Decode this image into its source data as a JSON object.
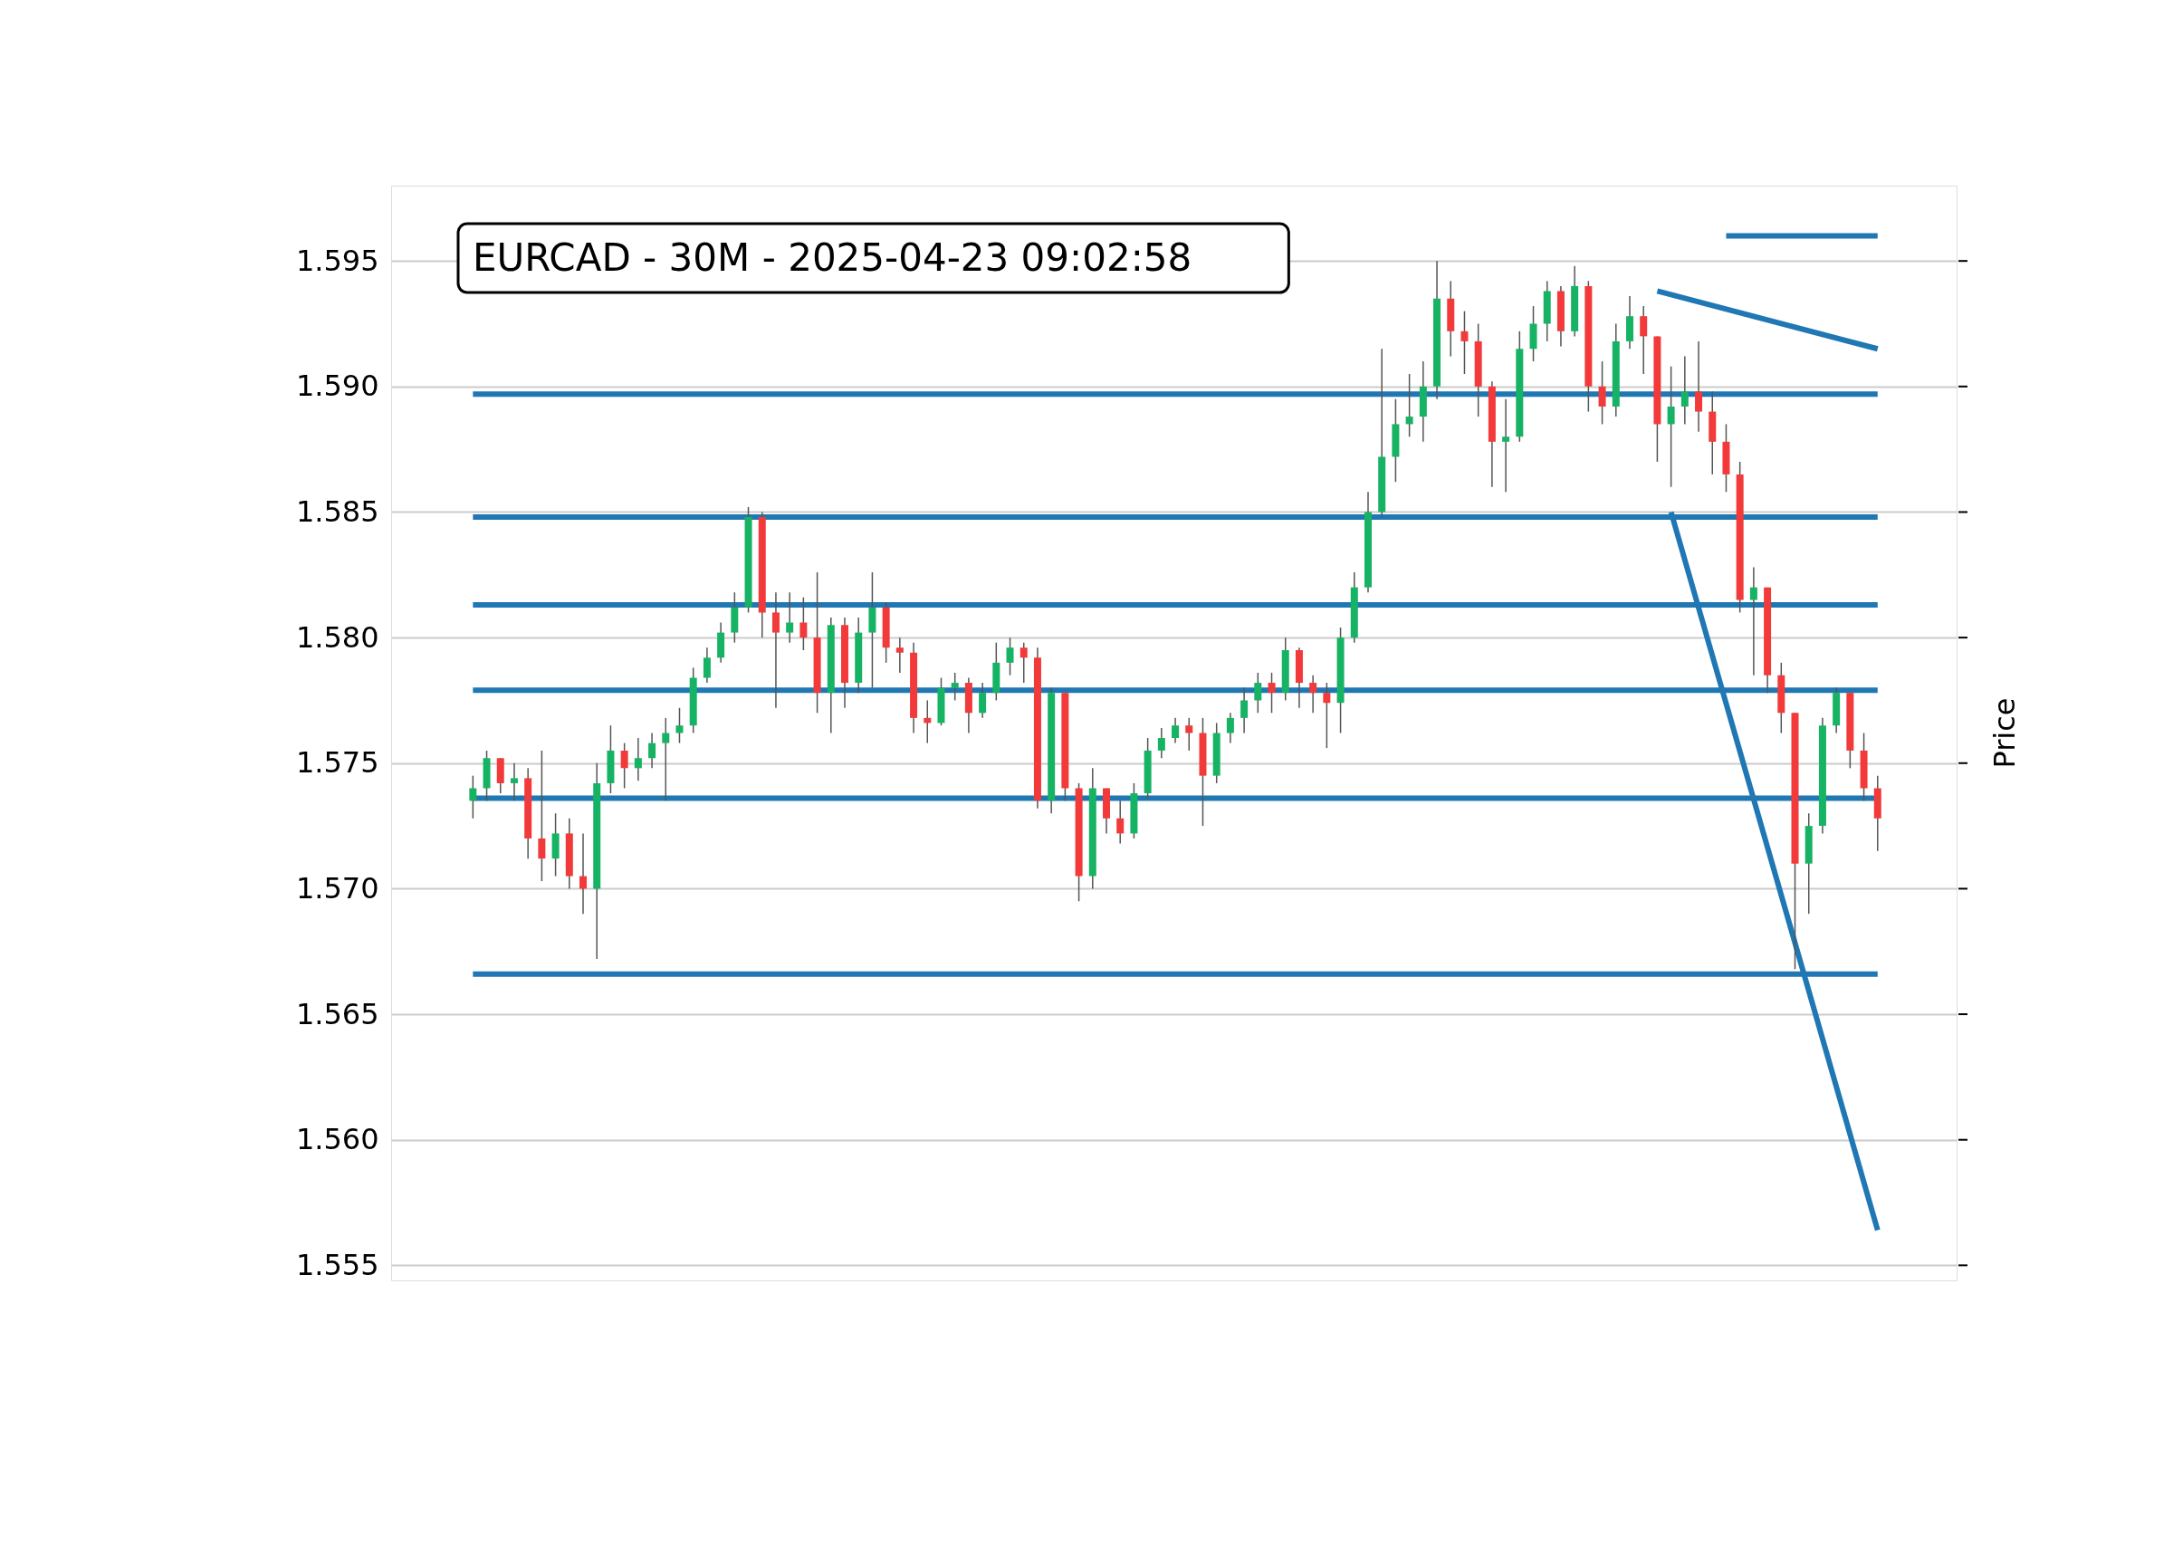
{
  "chart_data": {
    "type": "candlestick",
    "title": "EURCAD - 30M - 2025-04-23 09:02:58",
    "ylabel": "Price",
    "categories": [
      null,
      null,
      null,
      null,
      null,
      null,
      null,
      null,
      null,
      null,
      null,
      null,
      null,
      null,
      null,
      null,
      null,
      null,
      null,
      null,
      null,
      null,
      null,
      null,
      null,
      null,
      null,
      null,
      null,
      null,
      null,
      null,
      null,
      null,
      null,
      null,
      null,
      null,
      null,
      null,
      null,
      null,
      null,
      null,
      null,
      null,
      null,
      null,
      null,
      null,
      null,
      null,
      null,
      null,
      null,
      null,
      null,
      null,
      null,
      null,
      null,
      null,
      null,
      null,
      null,
      null,
      null,
      null,
      null,
      null,
      null,
      null,
      null,
      null,
      null,
      null,
      null,
      null,
      null,
      null,
      null,
      null,
      null,
      null,
      null,
      null,
      null,
      null,
      null,
      null,
      null,
      null,
      null,
      null,
      null,
      null,
      null,
      null,
      null,
      null,
      null,
      null,
      null
    ],
    "ohlc": [
      [
        1.5735,
        1.5745,
        1.5728,
        1.574
      ],
      [
        1.574,
        1.5755,
        1.5735,
        1.5752
      ],
      [
        1.5752,
        1.5752,
        1.5738,
        1.5742
      ],
      [
        1.5742,
        1.575,
        1.5735,
        1.5744
      ],
      [
        1.5744,
        1.5748,
        1.5712,
        1.572
      ],
      [
        1.572,
        1.5755,
        1.5703,
        1.5712
      ],
      [
        1.5712,
        1.573,
        1.5705,
        1.5722
      ],
      [
        1.5722,
        1.5728,
        1.57,
        1.5705
      ],
      [
        1.5705,
        1.5722,
        1.569,
        1.57
      ],
      [
        1.57,
        1.575,
        1.5672,
        1.5742
      ],
      [
        1.5742,
        1.5765,
        1.5738,
        1.5755
      ],
      [
        1.5755,
        1.5758,
        1.574,
        1.5748
      ],
      [
        1.5748,
        1.576,
        1.5743,
        1.5752
      ],
      [
        1.5752,
        1.5762,
        1.5748,
        1.5758
      ],
      [
        1.5758,
        1.5768,
        1.5735,
        1.5762
      ],
      [
        1.5762,
        1.5772,
        1.5758,
        1.5765
      ],
      [
        1.5765,
        1.5788,
        1.5762,
        1.5784
      ],
      [
        1.5784,
        1.5796,
        1.5782,
        1.5792
      ],
      [
        1.5792,
        1.5806,
        1.579,
        1.5802
      ],
      [
        1.5802,
        1.5818,
        1.5798,
        1.5812
      ],
      [
        1.5812,
        1.5852,
        1.581,
        1.5848
      ],
      [
        1.5848,
        1.585,
        1.58,
        1.581
      ],
      [
        1.581,
        1.5818,
        1.5772,
        1.5802
      ],
      [
        1.5802,
        1.5818,
        1.5798,
        1.5806
      ],
      [
        1.5806,
        1.5816,
        1.5795,
        1.58
      ],
      [
        1.58,
        1.5826,
        1.577,
        1.5778
      ],
      [
        1.5778,
        1.5808,
        1.5762,
        1.5805
      ],
      [
        1.5805,
        1.5808,
        1.5772,
        1.5782
      ],
      [
        1.5782,
        1.5808,
        1.5778,
        1.5802
      ],
      [
        1.5802,
        1.5826,
        1.578,
        1.5812
      ],
      [
        1.5812,
        1.5814,
        1.579,
        1.5796
      ],
      [
        1.5796,
        1.58,
        1.5786,
        1.5794
      ],
      [
        1.5794,
        1.5798,
        1.5762,
        1.5768
      ],
      [
        1.5768,
        1.5775,
        1.5758,
        1.5766
      ],
      [
        1.5766,
        1.5784,
        1.5765,
        1.578
      ],
      [
        1.578,
        1.5786,
        1.5775,
        1.5782
      ],
      [
        1.5782,
        1.5784,
        1.5762,
        1.577
      ],
      [
        1.577,
        1.5782,
        1.5768,
        1.5778
      ],
      [
        1.5778,
        1.5798,
        1.5775,
        1.579
      ],
      [
        1.579,
        1.58,
        1.5785,
        1.5796
      ],
      [
        1.5796,
        1.5798,
        1.5782,
        1.5792
      ],
      [
        1.5792,
        1.5796,
        1.5732,
        1.5735
      ],
      [
        1.5735,
        1.578,
        1.573,
        1.5778
      ],
      [
        1.5778,
        1.5778,
        1.5735,
        1.574
      ],
      [
        1.574,
        1.5742,
        1.5695,
        1.5705
      ],
      [
        1.5705,
        1.5748,
        1.57,
        1.574
      ],
      [
        1.574,
        1.574,
        1.5722,
        1.5728
      ],
      [
        1.5728,
        1.5735,
        1.5718,
        1.5722
      ],
      [
        1.5722,
        1.5742,
        1.572,
        1.5738
      ],
      [
        1.5738,
        1.576,
        1.5736,
        1.5755
      ],
      [
        1.5755,
        1.5764,
        1.5752,
        1.576
      ],
      [
        1.576,
        1.5768,
        1.5758,
        1.5765
      ],
      [
        1.5765,
        1.5768,
        1.5755,
        1.5762
      ],
      [
        1.5762,
        1.5768,
        1.5725,
        1.5745
      ],
      [
        1.5745,
        1.5766,
        1.5742,
        1.5762
      ],
      [
        1.5762,
        1.577,
        1.5758,
        1.5768
      ],
      [
        1.5768,
        1.578,
        1.5762,
        1.5775
      ],
      [
        1.5775,
        1.5786,
        1.577,
        1.5782
      ],
      [
        1.5782,
        1.5786,
        1.577,
        1.5778
      ],
      [
        1.5778,
        1.58,
        1.5775,
        1.5795
      ],
      [
        1.5795,
        1.5796,
        1.5772,
        1.5782
      ],
      [
        1.5782,
        1.5785,
        1.577,
        1.5778
      ],
      [
        1.5778,
        1.5782,
        1.5756,
        1.5774
      ],
      [
        1.5774,
        1.5804,
        1.5762,
        1.58
      ],
      [
        1.58,
        1.5826,
        1.5798,
        1.582
      ],
      [
        1.582,
        1.5858,
        1.5818,
        1.585
      ],
      [
        1.585,
        1.5915,
        1.5848,
        1.5872
      ],
      [
        1.5872,
        1.5895,
        1.5862,
        1.5885
      ],
      [
        1.5885,
        1.5905,
        1.588,
        1.5888
      ],
      [
        1.5888,
        1.591,
        1.5878,
        1.59
      ],
      [
        1.59,
        1.595,
        1.5895,
        1.5935
      ],
      [
        1.5935,
        1.5942,
        1.5912,
        1.5922
      ],
      [
        1.5922,
        1.593,
        1.5905,
        1.5918
      ],
      [
        1.5918,
        1.5925,
        1.5888,
        1.59
      ],
      [
        1.59,
        1.5902,
        1.586,
        1.5878
      ],
      [
        1.5878,
        1.5895,
        1.5858,
        1.588
      ],
      [
        1.588,
        1.5922,
        1.5878,
        1.5915
      ],
      [
        1.5915,
        1.5932,
        1.591,
        1.5925
      ],
      [
        1.5925,
        1.5942,
        1.5918,
        1.5938
      ],
      [
        1.5938,
        1.594,
        1.5916,
        1.5922
      ],
      [
        1.5922,
        1.5948,
        1.592,
        1.594
      ],
      [
        1.594,
        1.5942,
        1.589,
        1.59
      ],
      [
        1.59,
        1.591,
        1.5885,
        1.5892
      ],
      [
        1.5892,
        1.5925,
        1.5888,
        1.5918
      ],
      [
        1.5918,
        1.5936,
        1.5915,
        1.5928
      ],
      [
        1.5928,
        1.5932,
        1.5905,
        1.592
      ],
      [
        1.592,
        1.592,
        1.587,
        1.5885
      ],
      [
        1.5885,
        1.5908,
        1.586,
        1.5892
      ],
      [
        1.5892,
        1.5912,
        1.5885,
        1.5898
      ],
      [
        1.5898,
        1.5918,
        1.5882,
        1.589
      ],
      [
        1.589,
        1.5898,
        1.5865,
        1.5878
      ],
      [
        1.5878,
        1.5885,
        1.5858,
        1.5865
      ],
      [
        1.5865,
        1.587,
        1.581,
        1.5815
      ],
      [
        1.5815,
        1.5828,
        1.5785,
        1.582
      ],
      [
        1.582,
        1.582,
        1.5778,
        1.5785
      ],
      [
        1.5785,
        1.579,
        1.5762,
        1.577
      ],
      [
        1.577,
        1.577,
        1.5668,
        1.571
      ],
      [
        1.571,
        1.573,
        1.569,
        1.5725
      ],
      [
        1.5725,
        1.5768,
        1.5722,
        1.5765
      ],
      [
        1.5765,
        1.578,
        1.5762,
        1.5778
      ],
      [
        1.5778,
        1.5778,
        1.5748,
        1.5755
      ],
      [
        1.5755,
        1.5762,
        1.5735,
        1.574
      ],
      [
        1.574,
        1.5745,
        1.5715,
        1.5728
      ]
    ],
    "ylim": [
      1.5544,
      1.598
    ],
    "yticks": [
      1.555,
      {
        "value": 1.56,
        "label": "1.560"
      },
      1.565,
      {
        "value": 1.57,
        "label": "1.570"
      },
      1.575,
      {
        "value": 1.58,
        "label": "1.580"
      },
      1.585,
      {
        "value": 1.59,
        "label": "1.590"
      },
      1.595
    ],
    "grid": "y",
    "tick_labels": "y",
    "ref_lines": [
      {
        "axis": "y",
        "value": 1.5897,
        "color": "#1f77b4"
      },
      {
        "axis": "y",
        "value": 1.5848,
        "color": "#1f77b4"
      },
      {
        "axis": "y",
        "value": 1.5813,
        "color": "#1f77b4"
      },
      {
        "axis": "y",
        "value": 1.5779,
        "color": "#1f77b4"
      },
      {
        "axis": "y",
        "value": 1.5736,
        "color": "#1f77b4"
      },
      {
        "axis": "y",
        "value": 1.5666,
        "color": "#1f77b4"
      }
    ],
    "series": [
      {
        "type": "line",
        "color": "#1f77b4",
        "values": [
          null,
          null,
          null,
          null,
          null,
          null,
          null,
          null,
          null,
          null,
          null,
          null,
          null,
          null,
          null,
          null,
          null,
          null,
          null,
          null,
          null,
          null,
          null,
          null,
          null,
          null,
          null,
          null,
          null,
          null,
          null,
          null,
          null,
          null,
          null,
          null,
          null,
          null,
          null,
          null,
          null,
          null,
          null,
          null,
          null,
          null,
          null,
          null,
          null,
          null,
          null,
          null,
          null,
          null,
          null,
          null,
          null,
          null,
          null,
          null,
          null,
          null,
          null,
          null,
          null,
          null,
          null,
          null,
          null,
          null,
          null,
          null,
          null,
          null,
          null,
          null,
          null,
          null,
          null,
          null,
          null,
          null,
          null,
          null,
          null,
          null,
          null,
          null,
          null,
          null,
          null,
          1.596,
          null,
          null,
          null,
          null,
          null,
          null,
          null,
          null,
          null,
          null,
          1.596
        ]
      },
      {
        "type": "line",
        "color": "#1f77b4",
        "values": [
          null,
          null,
          null,
          null,
          null,
          null,
          null,
          null,
          null,
          null,
          null,
          null,
          null,
          null,
          null,
          null,
          null,
          null,
          null,
          null,
          null,
          null,
          null,
          null,
          null,
          null,
          null,
          null,
          null,
          null,
          null,
          null,
          null,
          null,
          null,
          null,
          null,
          null,
          null,
          null,
          null,
          null,
          null,
          null,
          null,
          null,
          null,
          null,
          null,
          null,
          null,
          null,
          null,
          null,
          null,
          null,
          null,
          null,
          null,
          null,
          null,
          null,
          null,
          null,
          null,
          null,
          null,
          null,
          null,
          null,
          null,
          null,
          null,
          null,
          null,
          null,
          null,
          null,
          null,
          null,
          null,
          null,
          null,
          null,
          null,
          null,
          1.5938,
          null,
          null,
          null,
          null,
          null,
          null,
          null,
          null,
          null,
          null,
          null,
          null,
          null,
          null,
          null,
          1.5915
        ]
      },
      {
        "type": "line",
        "color": "#1f77b4",
        "values": [
          null,
          null,
          null,
          null,
          null,
          null,
          null,
          null,
          null,
          null,
          null,
          null,
          null,
          null,
          null,
          null,
          null,
          null,
          null,
          null,
          null,
          null,
          null,
          null,
          null,
          null,
          null,
          null,
          null,
          null,
          null,
          null,
          null,
          null,
          null,
          null,
          null,
          null,
          null,
          null,
          null,
          null,
          null,
          null,
          null,
          null,
          null,
          null,
          null,
          null,
          null,
          null,
          null,
          null,
          null,
          null,
          null,
          null,
          null,
          null,
          null,
          null,
          null,
          null,
          null,
          null,
          null,
          null,
          null,
          null,
          null,
          null,
          null,
          null,
          null,
          null,
          null,
          null,
          null,
          null,
          null,
          null,
          null,
          null,
          null,
          null,
          null,
          1.585,
          null,
          null,
          null,
          null,
          null,
          null,
          null,
          null,
          null,
          null,
          null,
          null,
          null,
          null,
          1.5564
        ]
      }
    ]
  }
}
